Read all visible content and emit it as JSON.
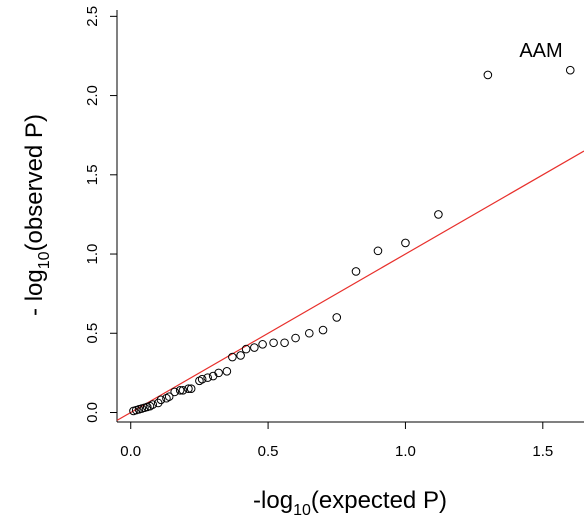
{
  "chart_data": {
    "type": "scatter",
    "annotation": "AAM",
    "xlabel": {
      "prefix": "-log",
      "sub": "10",
      "suffix": "(expected P)"
    },
    "ylabel": {
      "prefix": "- log",
      "sub": "10",
      "suffix": "(observed P)"
    },
    "xlim": [
      -0.05,
      1.65
    ],
    "ylim": [
      -0.06,
      2.54
    ],
    "xticks": [
      0.0,
      0.5,
      1.0,
      1.5
    ],
    "xtick_labels": [
      "0.0",
      "0.5",
      "1.0",
      "1.5"
    ],
    "yticks": [
      0.0,
      0.5,
      1.0,
      1.5,
      2.0,
      2.5
    ],
    "ytick_labels": [
      "0.0",
      "0.5",
      "1.0",
      "1.5",
      "2.0",
      "2.5"
    ],
    "grid": false,
    "colors": {
      "points": "#000000",
      "reference_line": "#e8302c"
    },
    "reference_line": {
      "x": [
        -0.05,
        1.65
      ],
      "y": [
        -0.05,
        1.65
      ]
    },
    "points": {
      "x": [
        0.01,
        0.02,
        0.03,
        0.04,
        0.05,
        0.06,
        0.07,
        0.08,
        0.1,
        0.11,
        0.13,
        0.14,
        0.16,
        0.18,
        0.19,
        0.21,
        0.22,
        0.25,
        0.26,
        0.28,
        0.3,
        0.32,
        0.35,
        0.37,
        0.4,
        0.42,
        0.45,
        0.48,
        0.52,
        0.56,
        0.6,
        0.65,
        0.7,
        0.75,
        0.82,
        0.9,
        1.0,
        1.12,
        1.3,
        1.6
      ],
      "y": [
        0.01,
        0.015,
        0.02,
        0.025,
        0.03,
        0.035,
        0.04,
        0.05,
        0.06,
        0.08,
        0.09,
        0.1,
        0.13,
        0.14,
        0.14,
        0.15,
        0.15,
        0.2,
        0.21,
        0.22,
        0.23,
        0.25,
        0.26,
        0.35,
        0.36,
        0.4,
        0.41,
        0.43,
        0.44,
        0.44,
        0.47,
        0.5,
        0.52,
        0.6,
        0.89,
        1.02,
        1.07,
        1.25,
        2.13,
        2.16
      ]
    }
  }
}
